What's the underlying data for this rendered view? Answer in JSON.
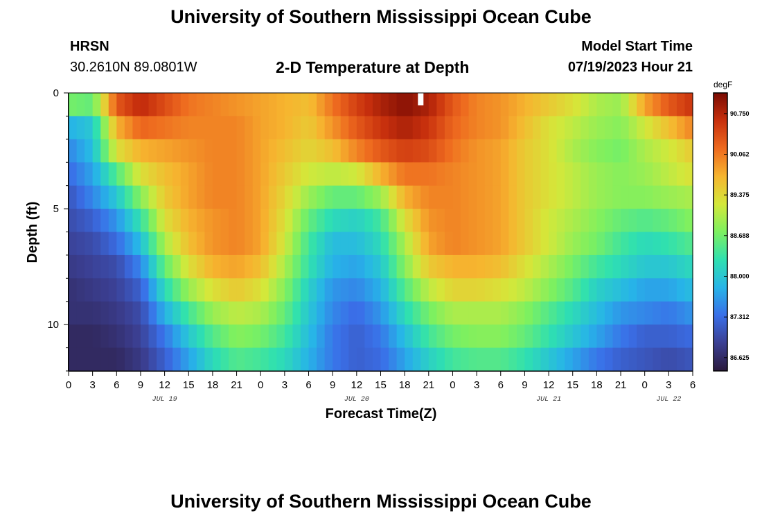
{
  "header": {
    "title": "University of Southern Mississippi Ocean Cube",
    "station_code": "HRSN",
    "station_coords": "30.2610N  89.0801W",
    "chart_title": "2-D Temperature at Depth",
    "model_start_label": "Model Start Time",
    "model_start_value": "07/19/2023 Hour 21"
  },
  "footer": {
    "title": "University of Southern Mississippi Ocean Cube"
  },
  "chart_data": {
    "type": "heatmap",
    "title": "2-D Temperature at Depth",
    "xlabel": "Forecast Time(Z)",
    "ylabel": "Depth (ft)",
    "x_unit": "hours since Jul 19 00Z",
    "xlim": [
      0,
      78
    ],
    "ylim": [
      12,
      0
    ],
    "x_ticks": [
      0,
      3,
      6,
      9,
      12,
      15,
      18,
      21,
      24,
      27,
      30,
      33,
      36,
      39,
      42,
      45,
      48,
      51,
      54,
      57,
      60,
      63,
      66,
      69,
      72,
      75,
      78
    ],
    "x_tick_labels": [
      "0",
      "3",
      "6",
      "9",
      "12",
      "15",
      "18",
      "21",
      "0",
      "3",
      "6",
      "9",
      "12",
      "15",
      "18",
      "21",
      "0",
      "3",
      "6",
      "9",
      "12",
      "15",
      "18",
      "21",
      "0",
      "3",
      "6"
    ],
    "date_labels": [
      {
        "hour": 12,
        "label": "JUL 19"
      },
      {
        "hour": 36,
        "label": "JUL 20"
      },
      {
        "hour": 60,
        "label": "JUL 21"
      },
      {
        "hour": 75,
        "label": "JUL 22"
      }
    ],
    "y_ticks": [
      0,
      5,
      10
    ],
    "y_tick_labels": [
      "0",
      "5",
      "10"
    ],
    "depths_ft": [
      0,
      1,
      2,
      3,
      4,
      5,
      6,
      7,
      8,
      9,
      10,
      11
    ],
    "time_hours": [
      0,
      3,
      6,
      9,
      12,
      15,
      18,
      21,
      24,
      27,
      30,
      33,
      36,
      39,
      42,
      45,
      48,
      51,
      54,
      57,
      60,
      63,
      66,
      69,
      72,
      75,
      78
    ],
    "temperature_degF": [
      [
        88.7,
        88.6,
        90.3,
        90.7,
        90.4,
        90.1,
        90.0,
        89.9,
        89.8,
        89.7,
        89.6,
        90.1,
        90.5,
        90.8,
        91.0,
        90.8,
        90.3,
        90.0,
        89.9,
        89.7,
        89.5,
        89.3,
        89.0,
        88.9,
        89.8,
        90.3,
        90.6
      ],
      [
        87.8,
        88.0,
        89.7,
        90.2,
        90.1,
        90.0,
        90.0,
        90.0,
        89.8,
        89.7,
        89.5,
        89.9,
        90.3,
        90.6,
        90.8,
        90.6,
        90.2,
        90.0,
        89.9,
        89.6,
        89.3,
        89.1,
        88.9,
        88.8,
        89.2,
        89.6,
        90.0
      ],
      [
        87.5,
        87.9,
        89.3,
        89.7,
        89.8,
        89.9,
        90.0,
        90.0,
        89.8,
        89.6,
        89.4,
        89.6,
        90.0,
        90.3,
        90.5,
        90.4,
        90.1,
        89.9,
        89.8,
        89.5,
        89.3,
        89.0,
        88.8,
        88.7,
        89.0,
        89.2,
        89.5
      ],
      [
        87.3,
        87.7,
        88.5,
        89.3,
        89.6,
        89.8,
        90.0,
        90.0,
        89.8,
        89.5,
        89.2,
        89.1,
        89.2,
        89.7,
        90.1,
        90.1,
        90.0,
        89.9,
        89.8,
        89.5,
        89.3,
        89.1,
        88.9,
        88.8,
        88.9,
        89.1,
        89.3
      ],
      [
        87.1,
        87.5,
        88.0,
        88.8,
        89.5,
        89.8,
        90.0,
        90.0,
        89.8,
        89.4,
        88.9,
        88.6,
        88.6,
        88.9,
        89.7,
        90.0,
        90.0,
        89.9,
        89.8,
        89.5,
        89.3,
        89.1,
        88.9,
        88.8,
        88.8,
        88.9,
        89.0
      ],
      [
        87.0,
        87.2,
        87.6,
        88.3,
        89.3,
        89.7,
        89.9,
        90.0,
        89.8,
        89.3,
        88.6,
        88.2,
        88.1,
        88.4,
        89.3,
        89.9,
        90.0,
        89.9,
        89.8,
        89.5,
        89.2,
        89.0,
        88.8,
        88.6,
        88.5,
        88.6,
        88.8
      ],
      [
        86.9,
        87.0,
        87.3,
        87.9,
        89.0,
        89.6,
        89.9,
        90.0,
        89.8,
        89.2,
        88.4,
        87.9,
        87.9,
        88.2,
        89.0,
        89.8,
        90.0,
        89.9,
        89.8,
        89.5,
        89.2,
        88.9,
        88.7,
        88.4,
        88.2,
        88.3,
        88.5
      ],
      [
        86.8,
        86.9,
        87.0,
        87.5,
        88.6,
        89.3,
        89.7,
        89.8,
        89.6,
        89.0,
        88.3,
        87.8,
        87.7,
        88.0,
        88.8,
        89.5,
        89.7,
        89.7,
        89.6,
        89.3,
        89.0,
        88.7,
        88.4,
        88.2,
        88.0,
        88.0,
        88.2
      ],
      [
        86.7,
        86.8,
        86.9,
        87.2,
        88.2,
        88.9,
        89.3,
        89.5,
        89.3,
        88.8,
        88.1,
        87.6,
        87.5,
        87.8,
        88.5,
        89.1,
        89.4,
        89.4,
        89.3,
        89.1,
        88.8,
        88.5,
        88.1,
        87.9,
        87.7,
        87.7,
        87.9
      ],
      [
        86.7,
        86.7,
        86.8,
        87.0,
        87.8,
        88.4,
        88.9,
        89.1,
        89.0,
        88.6,
        88.0,
        87.5,
        87.3,
        87.6,
        88.2,
        88.7,
        89.0,
        89.0,
        89.0,
        88.8,
        88.5,
        88.2,
        87.9,
        87.6,
        87.5,
        87.4,
        87.6
      ],
      [
        86.6,
        86.6,
        86.7,
        86.9,
        87.4,
        88.0,
        88.5,
        88.8,
        88.7,
        88.4,
        87.9,
        87.4,
        87.2,
        87.4,
        87.9,
        88.4,
        88.7,
        88.8,
        88.8,
        88.6,
        88.3,
        88.0,
        87.7,
        87.4,
        87.2,
        87.2,
        87.3
      ],
      [
        86.6,
        86.6,
        86.6,
        86.8,
        87.2,
        87.7,
        88.2,
        88.5,
        88.4,
        88.2,
        87.8,
        87.4,
        87.2,
        87.3,
        87.7,
        88.1,
        88.4,
        88.5,
        88.5,
        88.3,
        88.0,
        87.7,
        87.4,
        87.2,
        87.1,
        87.0,
        87.1
      ]
    ],
    "marker": {
      "hour": 44,
      "depth_ft": 0.15
    },
    "colorbar": {
      "unit": "degF",
      "min": 86.4,
      "max": 91.1,
      "tick_values": [
        90.75,
        90.062,
        89.375,
        88.688,
        88.0,
        87.312,
        86.625
      ],
      "tick_labels": [
        "90.750",
        "90.062",
        "89.375",
        "88.688",
        "88.000",
        "87.312",
        "86.625"
      ]
    },
    "colors": {
      "ramp": [
        "#2b1a3d",
        "#3b3f92",
        "#3a6fe8",
        "#27b4e8",
        "#2fe0b0",
        "#7df060",
        "#d4e83a",
        "#f6b52f",
        "#ee6a1f",
        "#c8300d",
        "#7a0b03"
      ],
      "marker": "#ffffff",
      "frame": "#000000"
    }
  }
}
